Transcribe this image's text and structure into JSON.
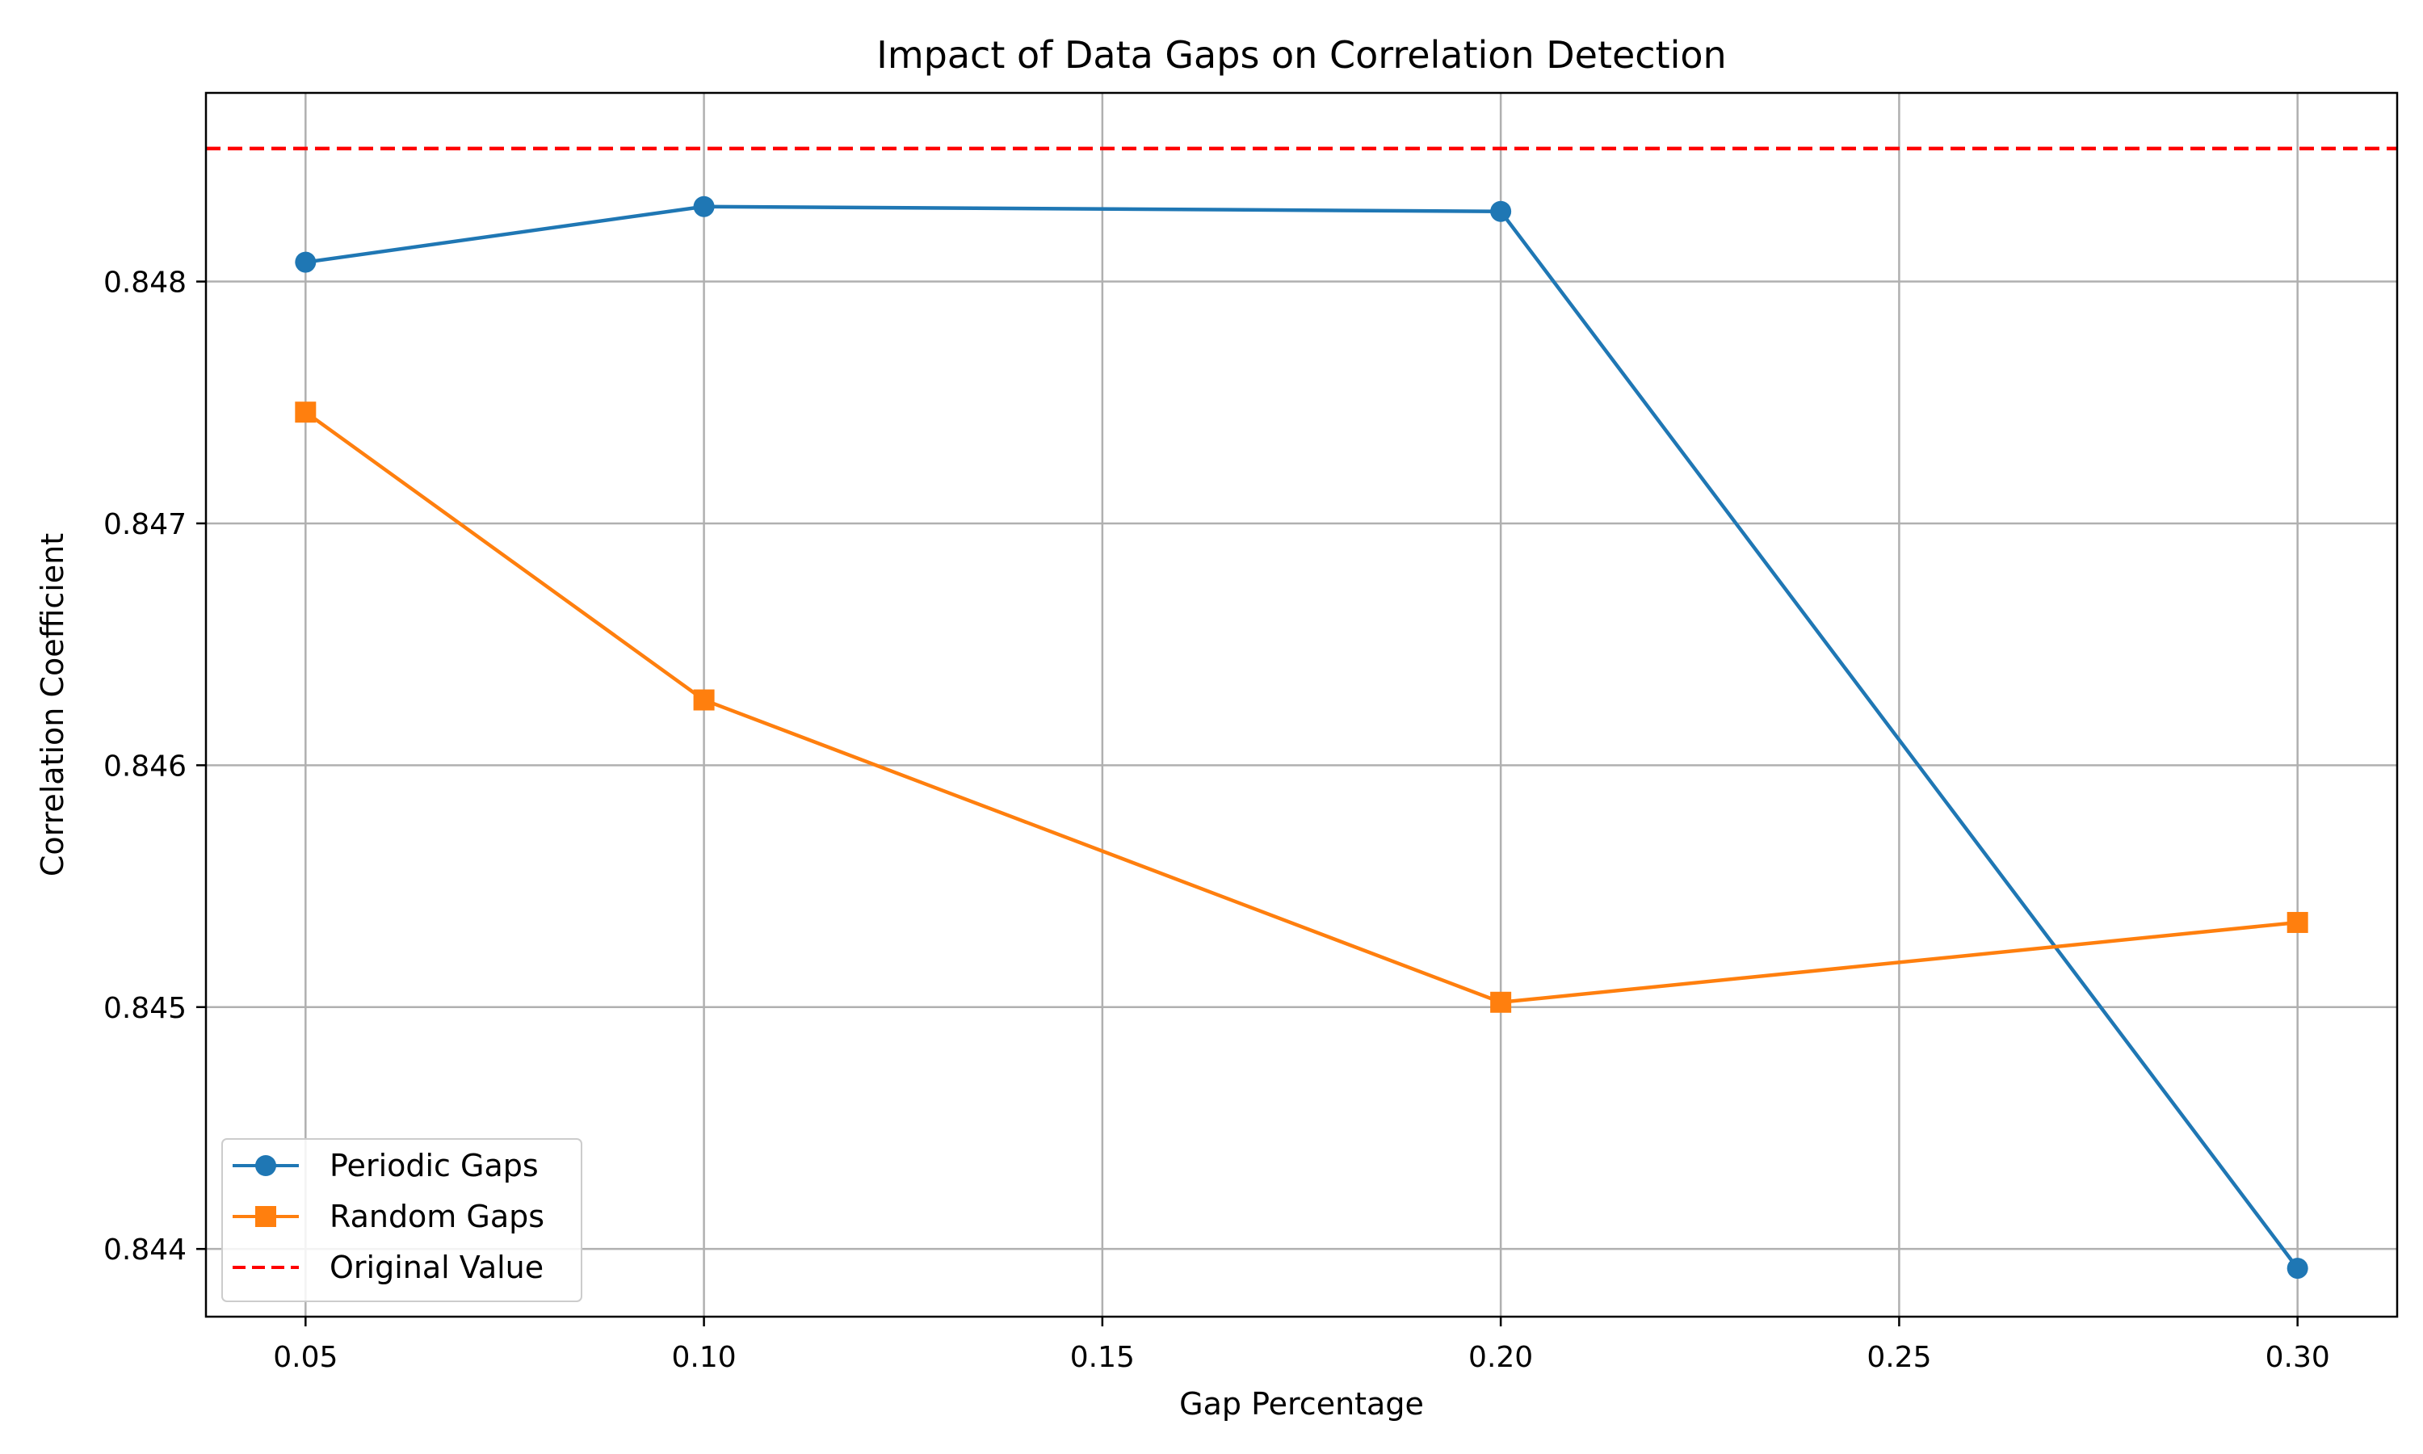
{
  "chart_data": {
    "type": "line",
    "title": "Impact of Data Gaps on Correlation Detection",
    "xlabel": "Gap Percentage",
    "ylabel": "Correlation Coefficient",
    "x": [
      0.05,
      0.1,
      0.2,
      0.3
    ],
    "x_ticks": [
      "0.05",
      "0.10",
      "0.15",
      "0.20",
      "0.25",
      "0.30"
    ],
    "x_tick_values": [
      0.05,
      0.1,
      0.15,
      0.2,
      0.25,
      0.3
    ],
    "y_ticks": [
      "0.844",
      "0.845",
      "0.846",
      "0.847",
      "0.848"
    ],
    "y_tick_values": [
      0.844,
      0.845,
      0.846,
      0.847,
      0.848
    ],
    "xlim": [
      0.0375,
      0.3125
    ],
    "ylim": [
      0.84372,
      0.84878
    ],
    "grid": true,
    "legend_position": "lower-left",
    "series": [
      {
        "name": "Periodic Gaps",
        "values": [
          0.84808,
          0.84831,
          0.84829,
          0.84392
        ],
        "color": "#1f77b4",
        "marker": "circle",
        "line_style": "solid"
      },
      {
        "name": "Random Gaps",
        "values": [
          0.84746,
          0.84627,
          0.84502,
          0.84535
        ],
        "color": "#ff7f0e",
        "marker": "square",
        "line_style": "solid"
      }
    ],
    "reference_lines": [
      {
        "name": "Original Value",
        "value": 0.84855,
        "color": "#ff0000",
        "line_style": "dashed"
      }
    ]
  }
}
